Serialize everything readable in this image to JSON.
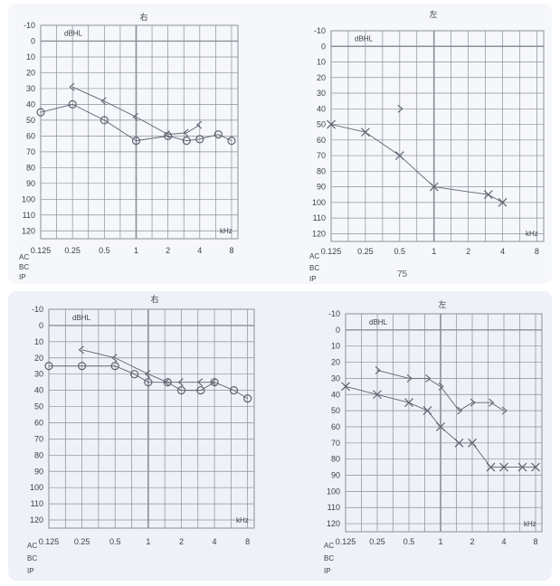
{
  "photos": [
    {
      "header_note": "",
      "bottom_note": "75"
    },
    {
      "header_note": "",
      "bottom_note": ""
    }
  ],
  "common": {
    "y_ticks": [
      -10,
      0,
      10,
      20,
      30,
      40,
      50,
      60,
      70,
      80,
      90,
      100,
      110,
      120
    ],
    "unit_db": "dBHL",
    "unit_khz": "kHz",
    "row_labels": [
      "AC",
      "BC",
      "IP"
    ]
  },
  "colors": {
    "paper": "#f6f7fb",
    "grid": "#8a8f9a",
    "ink": "#5f6470",
    "text": "#3b3f48",
    "photo2_bg": "#dfe5f0"
  },
  "chart_data": [
    {
      "type": "line",
      "title": "右",
      "x_ticks": [
        "0.125",
        "0.25",
        "0.5",
        "1",
        "2",
        "4",
        "8"
      ],
      "ylim": [
        -10,
        125
      ],
      "y_inverted": true,
      "series": [
        {
          "marker": "circle",
          "points": [
            [
              0.125,
              45
            ],
            [
              0.25,
              40
            ],
            [
              0.5,
              50
            ],
            [
              1,
              63
            ],
            [
              2,
              60
            ],
            [
              3,
              63
            ],
            [
              4,
              62
            ],
            [
              6,
              59
            ],
            [
              8,
              63
            ]
          ]
        },
        {
          "marker": "bracket-left",
          "points": [
            [
              0.25,
              29
            ],
            [
              0.5,
              38
            ],
            [
              1,
              48
            ],
            [
              2,
              59
            ],
            [
              3,
              58
            ],
            [
              4,
              53
            ]
          ]
        }
      ]
    },
    {
      "type": "line",
      "title": "左",
      "x_ticks": [
        "0.125",
        "0.25",
        "0.5",
        "1",
        "2",
        "4",
        "8"
      ],
      "ylim": [
        -10,
        125
      ],
      "y_inverted": true,
      "extra_marks": [
        {
          "marker": "bracket-right",
          "x": 0.5,
          "y": 40
        }
      ],
      "series": [
        {
          "marker": "x",
          "points": [
            [
              0.125,
              50
            ],
            [
              0.25,
              55
            ],
            [
              0.5,
              70
            ],
            [
              1,
              90
            ],
            [
              3,
              95
            ],
            [
              4,
              100
            ]
          ]
        }
      ]
    },
    {
      "type": "line",
      "title": "右",
      "x_ticks": [
        "0.125",
        "0.25",
        "0.5",
        "1",
        "2",
        "4",
        "8"
      ],
      "ylim": [
        -10,
        125
      ],
      "y_inverted": true,
      "series": [
        {
          "marker": "circle",
          "points": [
            [
              0.125,
              25
            ],
            [
              0.25,
              25
            ],
            [
              0.5,
              25
            ],
            [
              0.75,
              30
            ],
            [
              1,
              35
            ],
            [
              1.5,
              35
            ],
            [
              2,
              40
            ],
            [
              3,
              40
            ],
            [
              4,
              35
            ],
            [
              6,
              40
            ],
            [
              8,
              45
            ]
          ]
        },
        {
          "marker": "bracket-left",
          "points": [
            [
              0.25,
              15
            ],
            [
              0.5,
              20
            ],
            [
              1,
              30
            ],
            [
              1.5,
              35
            ],
            [
              2,
              35
            ],
            [
              3,
              35
            ],
            [
              4,
              35
            ]
          ]
        }
      ]
    },
    {
      "type": "line",
      "title": "左",
      "x_ticks": [
        "0.125",
        "0.25",
        "0.5",
        "1",
        "2",
        "4",
        "8"
      ],
      "ylim": [
        -10,
        125
      ],
      "y_inverted": true,
      "series": [
        {
          "marker": "x",
          "points": [
            [
              0.125,
              35
            ],
            [
              0.25,
              40
            ],
            [
              0.5,
              45
            ],
            [
              0.75,
              50
            ],
            [
              1,
              60
            ],
            [
              1.5,
              70
            ],
            [
              2,
              70
            ],
            [
              3,
              85
            ],
            [
              4,
              85
            ],
            [
              6,
              85
            ],
            [
              8,
              85
            ]
          ]
        },
        {
          "marker": "bracket-right",
          "points": [
            [
              0.25,
              25
            ],
            [
              0.5,
              30
            ],
            [
              0.75,
              30
            ],
            [
              1,
              35
            ],
            [
              1.5,
              50
            ],
            [
              2,
              45
            ],
            [
              3,
              45
            ],
            [
              4,
              50
            ]
          ]
        }
      ]
    }
  ]
}
